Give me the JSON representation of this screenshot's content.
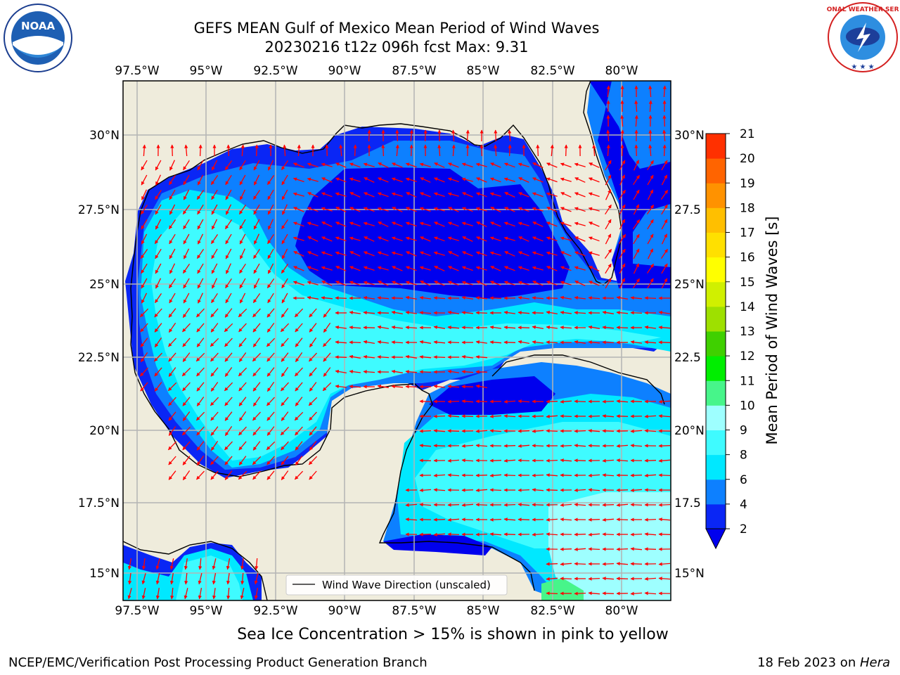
{
  "title": {
    "line1": "GEFS MEAN Gulf of Mexico Mean Period of Wind Waves",
    "line2": "20230216 t12z 096h fcst   Max: 9.31"
  },
  "logos": {
    "left": "noaa-logo",
    "right": "national-weather-service-logo",
    "left_text": "NOAA",
    "right_text": "NATIONAL WEATHER SERVICE"
  },
  "map": {
    "lon_labels": [
      "97.5°W",
      "95°W",
      "92.5°W",
      "90°W",
      "87.5°W",
      "85°W",
      "82.5°W",
      "80°W"
    ],
    "lat_labels": [
      "30°N",
      "27.5°N",
      "25°N",
      "22.5°N",
      "20°N",
      "17.5°N",
      "15°N"
    ],
    "right_lat_labels": [
      "30°N",
      "27.5",
      "25°N",
      "22.5",
      "20°N",
      "17.5",
      "15°N"
    ],
    "legend_label": "Wind Wave Direction (unscaled)",
    "land_color": "#efecdc",
    "arrow_color": "#ff0000"
  },
  "colorbar": {
    "label": "Mean Period of Wind Waves [s]",
    "ticks": [
      "2",
      "4",
      "6",
      "8",
      "9",
      "10",
      "11",
      "12",
      "13",
      "14",
      "15",
      "16",
      "17",
      "18",
      "19",
      "20",
      "21"
    ],
    "colors": [
      "#0a26f5",
      "#0d80ff",
      "#00e8ff",
      "#3ffbff",
      "#9effff",
      "#47f58a",
      "#00ee00",
      "#3fd000",
      "#9ee000",
      "#d0f000",
      "#ffff00",
      "#ffe000",
      "#ffbf00",
      "#ff9200",
      "#ff6400",
      "#ff3000",
      "#ff0000"
    ],
    "under_color": "#0000ee"
  },
  "ice_note": "Sea Ice Concentration > 15% is shown in pink to yellow",
  "footer": {
    "left": "NCEP/EMC/Verification Post Processing Product Generation Branch",
    "right_date": "18 Feb 2023 on ",
    "right_host": "Hera"
  }
}
